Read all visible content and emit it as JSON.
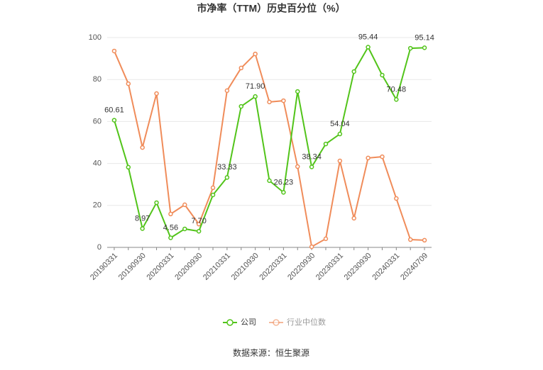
{
  "chart_data": {
    "type": "line",
    "title": "市净率（TTM）历史百分位（%）",
    "source": "数据来源：恒生聚源",
    "categories": [
      "20190331",
      null,
      "20190930",
      null,
      "20200331",
      null,
      "20200930",
      null,
      "20210331",
      null,
      "20210930",
      null,
      "20220331",
      null,
      "20220930",
      null,
      "20230331",
      null,
      "20230930",
      null,
      "20240331",
      null,
      "20240709"
    ],
    "series": [
      {
        "name": "公司",
        "color": "#52c41a",
        "values": [
          60.61,
          38.2,
          8.97,
          21.3,
          4.56,
          8.8,
          7.7,
          25.0,
          33.33,
          67.2,
          71.9,
          31.8,
          26.23,
          74.3,
          38.34,
          49.3,
          54.04,
          83.8,
          95.44,
          82.1,
          70.48,
          94.9,
          95.14
        ],
        "value_labels": [
          "60.61",
          null,
          "8.97",
          null,
          "4.56",
          null,
          "7.70",
          null,
          "33.33",
          null,
          "71.90",
          null,
          "26.23",
          null,
          "38.34",
          null,
          "54.04",
          null,
          "95.44",
          null,
          "70.48",
          null,
          "95.14"
        ]
      },
      {
        "name": "行业中位数",
        "color": "#f08c5a",
        "values": [
          93.6,
          78.0,
          47.6,
          73.3,
          15.9,
          20.3,
          11.1,
          28.4,
          74.7,
          85.5,
          92.2,
          69.3,
          69.9,
          38.5,
          0.3,
          4.1,
          41.2,
          13.9,
          42.6,
          43.2,
          23.3,
          3.7,
          3.4
        ]
      }
    ],
    "ylim": [
      0,
      100
    ],
    "yticks": [
      0,
      20,
      40,
      60,
      80,
      100
    ],
    "grid": true
  }
}
